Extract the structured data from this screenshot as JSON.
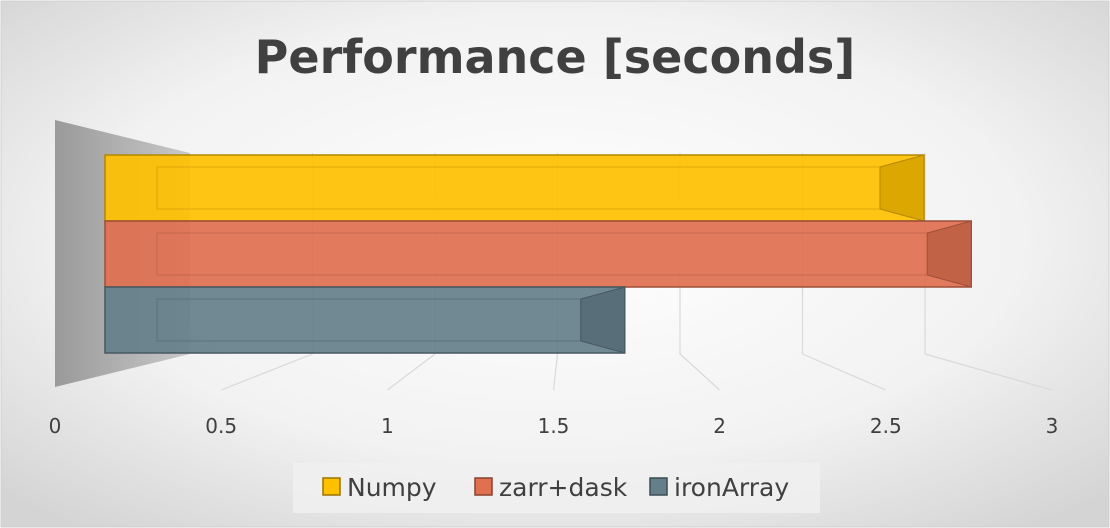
{
  "chart_data": {
    "type": "bar",
    "orientation": "horizontal",
    "title": "Performance [seconds]",
    "x_ticks": [
      "0",
      "0.5",
      "1",
      "1.5",
      "2",
      "2.5",
      "3"
    ],
    "xlim": [
      0,
      3
    ],
    "grid": true,
    "legend_position": "bottom",
    "series": [
      {
        "name": "Numpy",
        "value": 2.6,
        "color": "#FFC000"
      },
      {
        "name": "zarr+dask",
        "value": 2.75,
        "color": "#E07050"
      },
      {
        "name": "ironArray",
        "value": 1.65,
        "color": "#647F8A"
      }
    ]
  }
}
